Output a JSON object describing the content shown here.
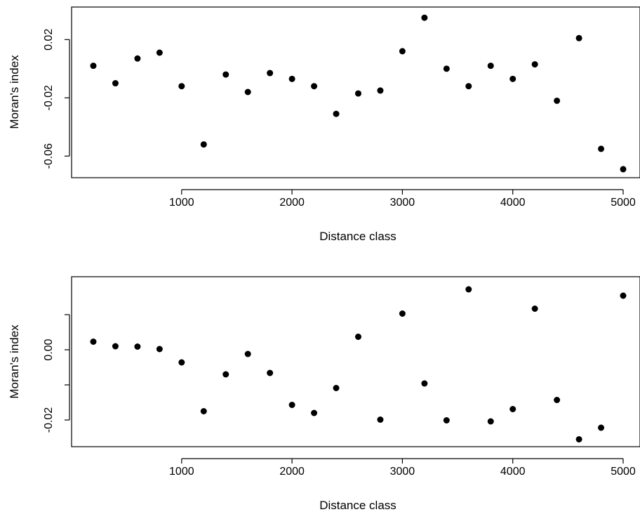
{
  "chart_data": [
    {
      "type": "scatter",
      "xlabel": "Distance class",
      "ylabel": "Moran's index",
      "xlim": [
        200,
        5000
      ],
      "ylim": [
        -0.07,
        0.038
      ],
      "x_ticks": [
        1000,
        2000,
        3000,
        4000,
        5000
      ],
      "y_ticks": [
        0.02,
        -0.02,
        -0.06
      ],
      "y_tick_labels": [
        "0.02",
        "-0.02",
        "-0.06"
      ],
      "grid": false,
      "series": [
        {
          "x": [
            200,
            400,
            600,
            800,
            1000,
            1200,
            1400,
            1600,
            1800,
            2000,
            2200,
            2400,
            2600,
            2800,
            3000,
            3200,
            3400,
            3600,
            3800,
            4000,
            4200,
            4400,
            4600,
            4800,
            5000
          ],
          "y": [
            0.002,
            -0.01,
            0.007,
            0.011,
            -0.012,
            -0.052,
            -0.004,
            -0.016,
            -0.003,
            -0.007,
            -0.012,
            -0.031,
            -0.017,
            -0.015,
            0.012,
            0.035,
            0.0,
            -0.012,
            0.002,
            -0.007,
            0.003,
            -0.022,
            0.021,
            -0.055,
            -0.069
          ]
        }
      ]
    },
    {
      "type": "scatter",
      "xlabel": "Distance class",
      "ylabel": "Moran's index",
      "xlim": [
        200,
        5000
      ],
      "ylim": [
        -0.026,
        0.019
      ],
      "x_ticks": [
        1000,
        2000,
        3000,
        4000,
        5000
      ],
      "y_ticks": [
        0.0,
        -0.02
      ],
      "y_tick_labels": [
        "0.00",
        "-0.02"
      ],
      "y_minor_ticks": [
        0.01,
        -0.01
      ],
      "grid": false,
      "series": [
        {
          "x": [
            200,
            400,
            600,
            800,
            1000,
            1200,
            1400,
            1600,
            1800,
            2000,
            2200,
            2400,
            2600,
            2800,
            3000,
            3200,
            3400,
            3600,
            3800,
            4000,
            4200,
            4400,
            4600,
            4800,
            5000
          ],
          "y": [
            0.0023,
            0.001,
            0.0009,
            0.0002,
            -0.0036,
            -0.0175,
            -0.007,
            -0.0012,
            -0.0066,
            -0.0157,
            -0.018,
            -0.0109,
            0.0037,
            -0.0199,
            0.0103,
            -0.0096,
            -0.0201,
            0.0172,
            -0.0204,
            -0.0169,
            0.0117,
            -0.0143,
            -0.0255,
            -0.0222,
            0.0154
          ]
        }
      ]
    }
  ]
}
